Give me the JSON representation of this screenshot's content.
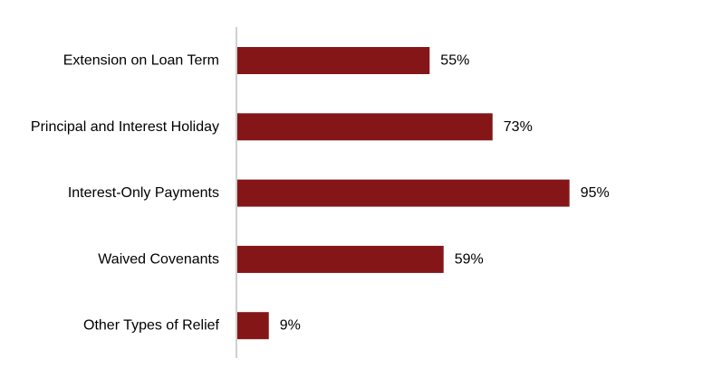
{
  "chart_data": {
    "type": "bar",
    "orientation": "horizontal",
    "categories": [
      "Extension on Loan Term",
      "Principal and Interest Holiday",
      "Interest-Only Payments",
      "Waived Covenants",
      "Other Types of Relief"
    ],
    "values": [
      55,
      73,
      95,
      59,
      9
    ],
    "value_labels": [
      "55%",
      "73%",
      "95%",
      "59%",
      "9%"
    ],
    "unit": "%",
    "xlim": [
      0,
      100
    ],
    "grid": false,
    "legend": "none",
    "title": "",
    "xlabel": "",
    "ylabel": ""
  },
  "colors": {
    "bar": "#841618",
    "axis": "#bfbfbf",
    "text": "#000000"
  }
}
